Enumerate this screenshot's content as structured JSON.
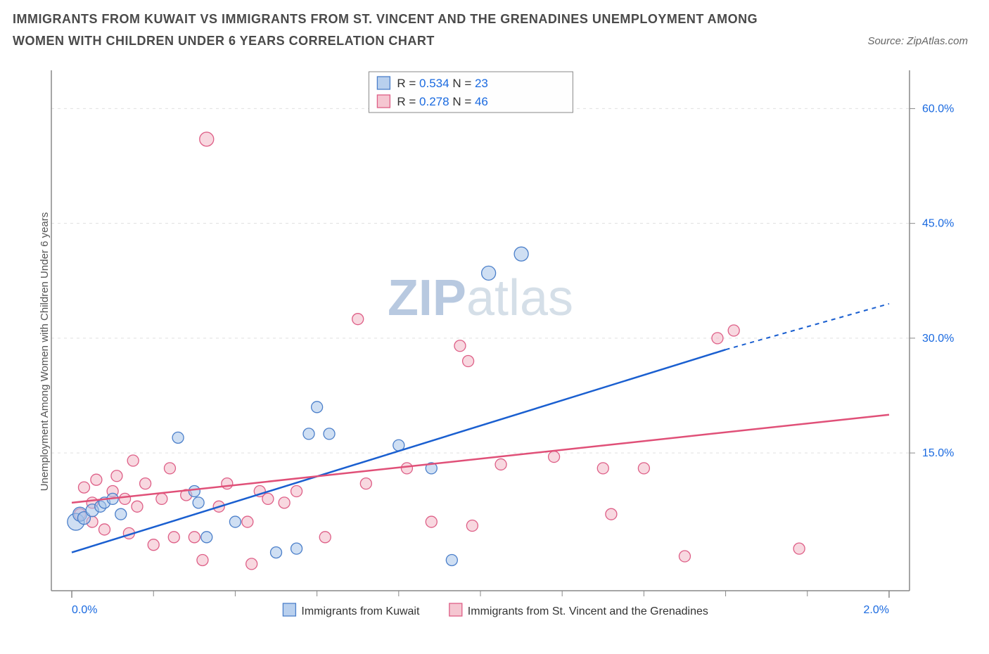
{
  "title": "IMMIGRANTS FROM KUWAIT VS IMMIGRANTS FROM ST. VINCENT AND THE GRENADINES UNEMPLOYMENT AMONG WOMEN WITH CHILDREN UNDER 6 YEARS CORRELATION CHART",
  "source": "Source: ZipAtlas.com",
  "watermark_a": "ZIP",
  "watermark_b": "atlas",
  "watermark_color_a": "#b8c9e0",
  "watermark_color_b": "#d5dfe8",
  "chart": {
    "type": "scatter",
    "xlim": [
      -0.05,
      2.05
    ],
    "ylim": [
      -3,
      65
    ],
    "x_ticks": [
      0.0,
      2.0
    ],
    "x_tick_labels": [
      "0.0%",
      "2.0%"
    ],
    "x_minor_ticks": [
      0.2,
      0.4,
      0.6,
      0.8,
      1.0,
      1.2,
      1.4,
      1.6,
      1.8
    ],
    "y_ticks": [
      15.0,
      30.0,
      45.0,
      60.0
    ],
    "y_tick_labels": [
      "15.0%",
      "30.0%",
      "45.0%",
      "60.0%"
    ],
    "grid_color": "#e0e0e0",
    "axis_color": "#888888",
    "background": "#ffffff",
    "tick_label_color": "#1a6ae0",
    "ytitle": "Unemployment Among Women with Children Under 6 years",
    "series": [
      {
        "name": "Immigrants from Kuwait",
        "color_fill": "#a8c4ea",
        "color_stroke": "#4b7fca",
        "line_color": "#1a5fd0",
        "opacity": 0.55,
        "r_stat": "0.534",
        "n_stat": "23",
        "trend": {
          "x1": 0.0,
          "y1": 2.0,
          "x2": 1.6,
          "y2": 28.5,
          "dash_from_x": 1.6,
          "dash_to_x": 2.0,
          "dash_to_y": 34.5
        },
        "points": [
          {
            "x": 0.01,
            "y": 6.0,
            "r": 12
          },
          {
            "x": 0.02,
            "y": 7.0,
            "r": 10
          },
          {
            "x": 0.03,
            "y": 6.5,
            "r": 9
          },
          {
            "x": 0.05,
            "y": 7.5,
            "r": 9
          },
          {
            "x": 0.07,
            "y": 8.0,
            "r": 8
          },
          {
            "x": 0.08,
            "y": 8.5,
            "r": 8
          },
          {
            "x": 0.1,
            "y": 9.0,
            "r": 8
          },
          {
            "x": 0.12,
            "y": 7.0,
            "r": 8
          },
          {
            "x": 0.26,
            "y": 17.0,
            "r": 8
          },
          {
            "x": 0.31,
            "y": 8.5,
            "r": 8
          },
          {
            "x": 0.33,
            "y": 4.0,
            "r": 8
          },
          {
            "x": 0.4,
            "y": 6.0,
            "r": 8
          },
          {
            "x": 0.5,
            "y": 2.0,
            "r": 8
          },
          {
            "x": 0.55,
            "y": 2.5,
            "r": 8
          },
          {
            "x": 0.58,
            "y": 17.5,
            "r": 8
          },
          {
            "x": 0.6,
            "y": 21.0,
            "r": 8
          },
          {
            "x": 0.63,
            "y": 17.5,
            "r": 8
          },
          {
            "x": 0.8,
            "y": 16.0,
            "r": 8
          },
          {
            "x": 0.88,
            "y": 13.0,
            "r": 8
          },
          {
            "x": 0.93,
            "y": 1.0,
            "r": 8
          },
          {
            "x": 1.02,
            "y": 38.5,
            "r": 10
          },
          {
            "x": 1.1,
            "y": 41.0,
            "r": 10
          },
          {
            "x": 0.3,
            "y": 10.0,
            "r": 8
          }
        ]
      },
      {
        "name": "Immigrants from St. Vincent and the Grenadines",
        "color_fill": "#f2b8c6",
        "color_stroke": "#de5f87",
        "line_color": "#e05078",
        "opacity": 0.55,
        "r_stat": "0.278",
        "n_stat": "46",
        "trend": {
          "x1": 0.0,
          "y1": 8.5,
          "x2": 2.0,
          "y2": 20.0
        },
        "points": [
          {
            "x": 0.02,
            "y": 7.0,
            "r": 8
          },
          {
            "x": 0.03,
            "y": 10.5,
            "r": 8
          },
          {
            "x": 0.05,
            "y": 6.0,
            "r": 8
          },
          {
            "x": 0.06,
            "y": 11.5,
            "r": 8
          },
          {
            "x": 0.08,
            "y": 5.0,
            "r": 8
          },
          {
            "x": 0.1,
            "y": 10.0,
            "r": 8
          },
          {
            "x": 0.11,
            "y": 12.0,
            "r": 8
          },
          {
            "x": 0.13,
            "y": 9.0,
            "r": 8
          },
          {
            "x": 0.14,
            "y": 4.5,
            "r": 8
          },
          {
            "x": 0.15,
            "y": 14.0,
            "r": 8
          },
          {
            "x": 0.16,
            "y": 8.0,
            "r": 8
          },
          {
            "x": 0.18,
            "y": 11.0,
            "r": 8
          },
          {
            "x": 0.2,
            "y": 3.0,
            "r": 8
          },
          {
            "x": 0.22,
            "y": 9.0,
            "r": 8
          },
          {
            "x": 0.24,
            "y": 13.0,
            "r": 8
          },
          {
            "x": 0.25,
            "y": 4.0,
            "r": 8
          },
          {
            "x": 0.28,
            "y": 9.5,
            "r": 8
          },
          {
            "x": 0.3,
            "y": 4.0,
            "r": 8
          },
          {
            "x": 0.32,
            "y": 1.0,
            "r": 8
          },
          {
            "x": 0.33,
            "y": 56.0,
            "r": 10
          },
          {
            "x": 0.36,
            "y": 8.0,
            "r": 8
          },
          {
            "x": 0.38,
            "y": 11.0,
            "r": 8
          },
          {
            "x": 0.43,
            "y": 6.0,
            "r": 8
          },
          {
            "x": 0.44,
            "y": 0.5,
            "r": 8
          },
          {
            "x": 0.46,
            "y": 10.0,
            "r": 8
          },
          {
            "x": 0.48,
            "y": 9.0,
            "r": 8
          },
          {
            "x": 0.52,
            "y": 8.5,
            "r": 8
          },
          {
            "x": 0.55,
            "y": 10.0,
            "r": 8
          },
          {
            "x": 0.62,
            "y": 4.0,
            "r": 8
          },
          {
            "x": 0.7,
            "y": 32.5,
            "r": 8
          },
          {
            "x": 0.72,
            "y": 11.0,
            "r": 8
          },
          {
            "x": 0.82,
            "y": 13.0,
            "r": 8
          },
          {
            "x": 0.88,
            "y": 6.0,
            "r": 8
          },
          {
            "x": 0.95,
            "y": 29.0,
            "r": 8
          },
          {
            "x": 0.97,
            "y": 27.0,
            "r": 8
          },
          {
            "x": 0.98,
            "y": 5.5,
            "r": 8
          },
          {
            "x": 1.05,
            "y": 13.5,
            "r": 8
          },
          {
            "x": 1.18,
            "y": 14.5,
            "r": 8
          },
          {
            "x": 1.3,
            "y": 13.0,
            "r": 8
          },
          {
            "x": 1.32,
            "y": 7.0,
            "r": 8
          },
          {
            "x": 1.4,
            "y": 13.0,
            "r": 8
          },
          {
            "x": 1.5,
            "y": 1.5,
            "r": 8
          },
          {
            "x": 1.58,
            "y": 30.0,
            "r": 8
          },
          {
            "x": 1.62,
            "y": 31.0,
            "r": 8
          },
          {
            "x": 1.78,
            "y": 2.5,
            "r": 8
          },
          {
            "x": 0.05,
            "y": 8.5,
            "r": 8
          }
        ]
      }
    ],
    "stats_box": {
      "border_color": "#888888",
      "r_label": "R =",
      "n_label": "N =",
      "label_color": "#333333",
      "value_color": "#1a6ae0"
    },
    "bottom_legend": {
      "label_color": "#333333"
    }
  }
}
